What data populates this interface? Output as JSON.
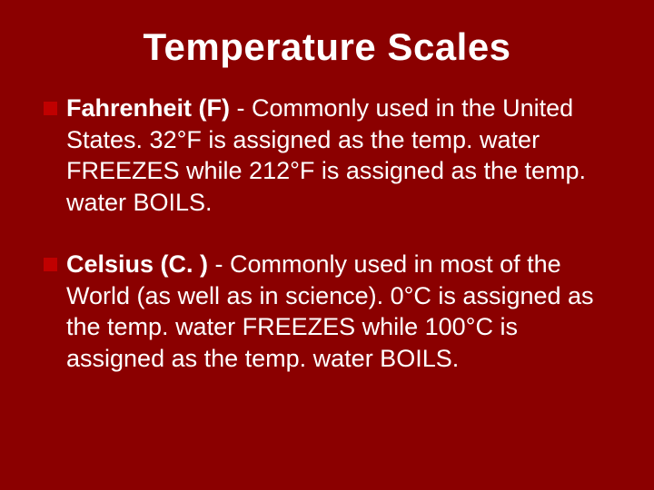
{
  "slide": {
    "background_color": "#8b0000",
    "title": {
      "text": "Temperature Scales",
      "color": "#ffffff",
      "fontsize": 42,
      "font_weight": "bold",
      "align": "center"
    },
    "bullet_marker": {
      "color": "#c00000",
      "size": 15
    },
    "body_text": {
      "color": "#ffffff",
      "fontsize": 27
    },
    "items": [
      {
        "lead": "Fahrenheit (F)",
        "rest": " - Commonly used in the United States.  32°F is assigned as the temp. water FREEZES while 212°F is assigned as the temp. water BOILS."
      },
      {
        "lead": "Celsius (C. )",
        "rest": " - Commonly used in most of the World (as well as in science).  0°C is assigned as the temp. water FREEZES while 100°C is assigned as the temp. water BOILS."
      }
    ]
  }
}
